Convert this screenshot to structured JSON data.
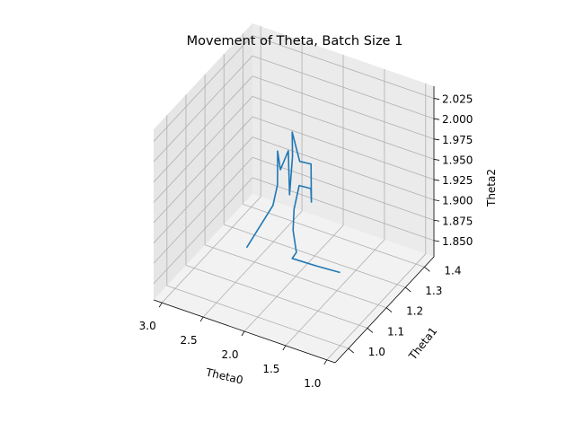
{
  "chart_data": {
    "type": "line3d",
    "title": "Movement of Theta, Batch Size 1",
    "xlabel": "Theta0",
    "ylabel": "Theta1",
    "zlabel": "Theta2",
    "xlim": [
      0.9,
      3.1
    ],
    "ylim": [
      0.93,
      1.45
    ],
    "zlim": [
      1.83,
      2.04
    ],
    "x_ticks": [
      "1.0",
      "1.5",
      "2.0",
      "2.5",
      "3.0"
    ],
    "y_ticks": [
      "1.0",
      "1.1",
      "1.2",
      "1.3",
      "1.4"
    ],
    "z_ticks": [
      "1.850",
      "1.875",
      "1.900",
      "1.925",
      "1.950",
      "1.975",
      "2.000",
      "2.025"
    ],
    "colors": {
      "line": "#1f77b4",
      "pane_light": "#f2f2f2",
      "pane_mid": "#ebebeb",
      "pane_dark": "#e6e6e6",
      "grid": "#b0b0b0"
    },
    "series": [
      {
        "name": "",
        "points": [
          [
            1.0,
            1.0,
            1.92
          ],
          [
            1.35,
            1.03,
            1.908
          ],
          [
            1.72,
            1.06,
            1.897
          ],
          [
            1.83,
            1.13,
            1.883
          ],
          [
            1.94,
            1.16,
            1.899
          ],
          [
            2.02,
            1.2,
            1.912
          ],
          [
            2.05,
            1.24,
            1.93
          ],
          [
            2.0,
            1.28,
            1.918
          ],
          [
            2.04,
            1.3,
            1.895
          ],
          [
            2.09,
            1.32,
            1.935
          ],
          [
            2.32,
            1.36,
            1.92
          ],
          [
            2.55,
            1.42,
            1.933
          ],
          [
            2.43,
            1.37,
            1.92
          ],
          [
            2.42,
            1.35,
            1.878
          ],
          [
            2.55,
            1.4,
            1.915
          ],
          [
            2.6,
            1.38,
            1.895
          ],
          [
            2.68,
            1.4,
            1.91
          ],
          [
            2.52,
            1.33,
            1.892
          ],
          [
            2.46,
            1.28,
            1.881
          ],
          [
            2.48,
            1.15,
            1.861
          ]
        ]
      }
    ]
  }
}
